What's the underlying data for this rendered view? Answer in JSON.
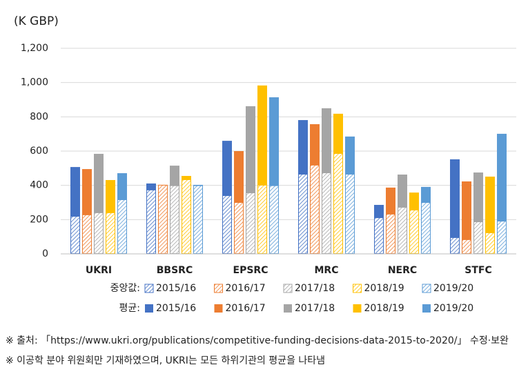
{
  "chart_data": {
    "type": "bar",
    "unit_label": "(K GBP)",
    "categories": [
      "UKRI",
      "BBSRC",
      "EPSRC",
      "MRC",
      "NERC",
      "STFC"
    ],
    "ylim": [
      0,
      1200
    ],
    "yticks": [
      0,
      200,
      400,
      600,
      800,
      {
        "value": 1000,
        "label": "1,000"
      },
      {
        "value": 1200,
        "label": "1,200"
      }
    ],
    "grid": true,
    "mean": {
      "label": "평균:",
      "series": [
        {
          "name": "2015/16",
          "color": "#4472c4",
          "values": [
            507,
            411,
            660,
            781,
            286,
            552
          ]
        },
        {
          "name": "2016/17",
          "color": "#ed7d31",
          "values": [
            495,
            403,
            600,
            757,
            387,
            423
          ]
        },
        {
          "name": "2017/18",
          "color": "#a5a5a5",
          "values": [
            584,
            515,
            862,
            850,
            463,
            475
          ]
        },
        {
          "name": "2018/19",
          "color": "#ffc000",
          "values": [
            431,
            455,
            983,
            818,
            358,
            451
          ]
        },
        {
          "name": "2019/20",
          "color": "#5b9bd5",
          "values": [
            471,
            403,
            914,
            685,
            391,
            701
          ]
        }
      ]
    },
    "median": {
      "label": "중앙값:",
      "series": [
        {
          "name": "2015/16",
          "color": "#4472c4",
          "values": [
            221,
            375,
            342,
            467,
            213,
            97
          ]
        },
        {
          "name": "2016/17",
          "color": "#ed7d31",
          "values": [
            230,
            403,
            302,
            520,
            234,
            85
          ]
        },
        {
          "name": "2017/18",
          "color": "#a5a5a5",
          "values": [
            242,
            400,
            358,
            475,
            274,
            189
          ]
        },
        {
          "name": "2018/19",
          "color": "#ffc000",
          "values": [
            242,
            435,
            403,
            588,
            258,
            125
          ]
        },
        {
          "name": "2019/20",
          "color": "#5b9bd5",
          "values": [
            318,
            400,
            400,
            467,
            302,
            193
          ]
        }
      ]
    }
  },
  "notes": [
    "※ 출처: 「https://www.ukri.org/publications/competitive-funding-decisions-data-2015-to-2020/」 수정·보완",
    "※ 이공학 분야 위원회만 기재하였으며, UKRI는 모든 하위기관의 평균을 나타냄"
  ]
}
